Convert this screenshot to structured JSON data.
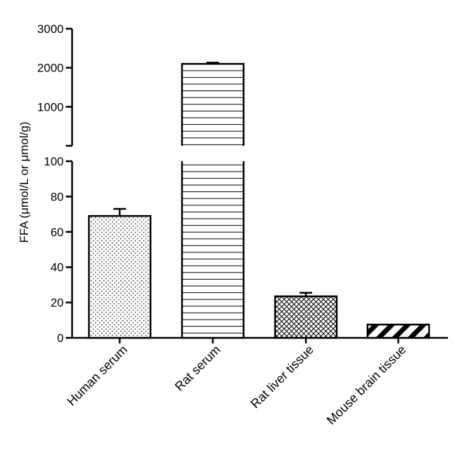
{
  "chart_data": {
    "type": "bar",
    "ylabel": "FFA (μmol/L or μmol/g)",
    "categories": [
      "Human serum",
      "Rat serum",
      "Rat liver tissue",
      "Mouse brain tissue"
    ],
    "values": [
      69,
      2100,
      23.5,
      7.5
    ],
    "errors": [
      4,
      30,
      2,
      0
    ],
    "fill_patterns": [
      "dots",
      "horizontal-lines",
      "crosshatch",
      "diagonal-stripes"
    ],
    "y_axis_broken": true,
    "lower_segment": {
      "ylim": [
        0,
        100
      ],
      "ticks": [
        "0",
        "20",
        "40",
        "60",
        "80",
        "100"
      ]
    },
    "upper_segment": {
      "ylim": [
        0,
        3000
      ],
      "ticks": [
        "1000",
        "2000",
        "3000"
      ]
    },
    "grid": false,
    "legend": "none"
  }
}
